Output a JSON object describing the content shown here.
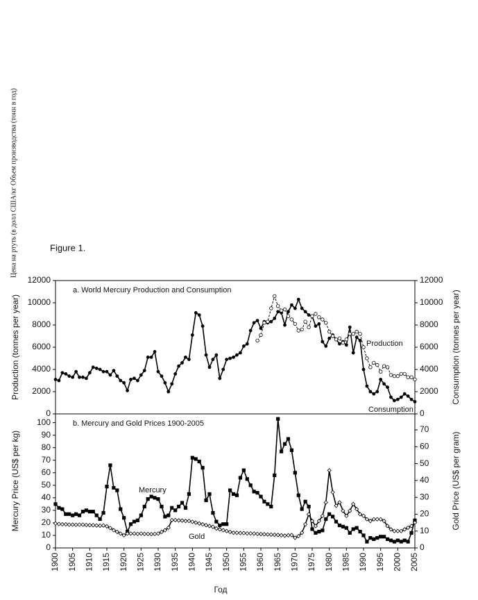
{
  "side_note": "Цена на ртуть (в долл США/кг Объем производства (тонн в год)",
  "figure_label": "Figure 1.",
  "chart_data": [
    {
      "type": "line",
      "title": "a. World Mercury Production and Consumption",
      "y_label": "Production (tonnes per year)",
      "y2_label": "Consumption (tonnes per year)",
      "xlim": [
        1900,
        2005
      ],
      "x": [
        1900,
        1901,
        1902,
        1903,
        1904,
        1905,
        1906,
        1907,
        1908,
        1909,
        1910,
        1911,
        1912,
        1913,
        1914,
        1915,
        1916,
        1917,
        1918,
        1919,
        1920,
        1921,
        1922,
        1923,
        1924,
        1925,
        1926,
        1927,
        1928,
        1929,
        1930,
        1931,
        1932,
        1933,
        1934,
        1935,
        1936,
        1937,
        1938,
        1939,
        1940,
        1941,
        1942,
        1943,
        1944,
        1945,
        1946,
        1947,
        1948,
        1949,
        1950,
        1951,
        1952,
        1953,
        1954,
        1955,
        1956,
        1957,
        1958,
        1959,
        1960,
        1961,
        1962,
        1963,
        1964,
        1965,
        1966,
        1967,
        1968,
        1969,
        1970,
        1971,
        1972,
        1973,
        1974,
        1975,
        1976,
        1977,
        1978,
        1979,
        1980,
        1981,
        1982,
        1983,
        1984,
        1985,
        1986,
        1987,
        1988,
        1989,
        1990,
        1991,
        1992,
        1993,
        1994,
        1995,
        1996,
        1997,
        1998,
        1999,
        2000,
        2001,
        2002,
        2003,
        2004,
        2005
      ],
      "ylim": [
        0,
        12000
      ],
      "yticks": [
        0,
        2000,
        4000,
        6000,
        8000,
        10000,
        12000
      ],
      "y2lim": [
        0,
        12000
      ],
      "y2ticks": [
        0,
        2000,
        4000,
        6000,
        8000,
        10000,
        12000
      ],
      "series": [
        {
          "name": "Production",
          "color": "#000000",
          "marker": "circle",
          "dashed": false,
          "values": [
            3100,
            3000,
            3700,
            3600,
            3400,
            3300,
            3800,
            3300,
            3300,
            3200,
            3700,
            4200,
            4100,
            4000,
            3800,
            3800,
            3500,
            3900,
            3400,
            3000,
            2800,
            2100,
            3100,
            3200,
            3000,
            3500,
            3900,
            5100,
            5100,
            5600,
            3800,
            3400,
            2800,
            2000,
            2700,
            3600,
            4300,
            4600,
            5100,
            4900,
            7100,
            9100,
            8900,
            7900,
            5300,
            4200,
            4900,
            5300,
            3200,
            4000,
            4900,
            5000,
            5100,
            5300,
            5500,
            6100,
            6300,
            7500,
            8200,
            8400,
            7700,
            8300,
            8200,
            8300,
            8600,
            9200,
            9100,
            8000,
            9200,
            9800,
            9500,
            10300,
            9500,
            9200,
            8900,
            8800,
            7900,
            8100,
            6500,
            6100,
            6800,
            7100,
            6700,
            6300,
            6500,
            6200,
            7800,
            5500,
            6900,
            6600,
            4000,
            2500,
            2000,
            1800,
            2000,
            3100,
            2700,
            2400,
            1500,
            1200,
            1300,
            1500,
            1800,
            1600,
            1300,
            1100
          ]
        },
        {
          "name": "Consumption",
          "color": "#000000",
          "marker": "open-circle",
          "dashed": true,
          "axis": "y2",
          "values": [
            null,
            null,
            null,
            null,
            null,
            null,
            null,
            null,
            null,
            null,
            null,
            null,
            null,
            null,
            null,
            null,
            null,
            null,
            null,
            null,
            null,
            null,
            null,
            null,
            null,
            null,
            null,
            null,
            null,
            null,
            null,
            null,
            null,
            null,
            null,
            null,
            null,
            null,
            null,
            null,
            null,
            null,
            null,
            null,
            null,
            null,
            null,
            null,
            null,
            null,
            null,
            null,
            null,
            null,
            null,
            null,
            null,
            null,
            null,
            6600,
            7100,
            8200,
            8300,
            9500,
            10600,
            9700,
            9300,
            9400,
            8800,
            8500,
            8100,
            7500,
            7600,
            8300,
            7800,
            8800,
            9000,
            8700,
            8500,
            8200,
            7400,
            7000,
            6700,
            6800,
            6400,
            6700,
            7200,
            7200,
            7400,
            7200,
            6000,
            5000,
            4200,
            4600,
            4400,
            3800,
            4300,
            4200,
            3500,
            3400,
            3400,
            3600,
            3600,
            3300,
            3300,
            3100
          ]
        }
      ]
    },
    {
      "type": "line",
      "title": "b. Mercury and Gold Prices 1900-2005",
      "y_label": "Mercury Price  (US$ per kg)",
      "y2_label": "Gold Price (US$ per gram)",
      "x_label": "Год",
      "xlim": [
        1900,
        2005
      ],
      "xticks": [
        1900,
        1905,
        1910,
        1915,
        1920,
        1925,
        1930,
        1935,
        1940,
        1945,
        1950,
        1955,
        1960,
        1965,
        1970,
        1975,
        1980,
        1985,
        1990,
        1995,
        2000,
        2005
      ],
      "x": [
        1900,
        1901,
        1902,
        1903,
        1904,
        1905,
        1906,
        1907,
        1908,
        1909,
        1910,
        1911,
        1912,
        1913,
        1914,
        1915,
        1916,
        1917,
        1918,
        1919,
        1920,
        1921,
        1922,
        1923,
        1924,
        1925,
        1926,
        1927,
        1928,
        1929,
        1930,
        1931,
        1932,
        1933,
        1934,
        1935,
        1936,
        1937,
        1938,
        1939,
        1940,
        1941,
        1942,
        1943,
        1944,
        1945,
        1946,
        1947,
        1948,
        1949,
        1950,
        1951,
        1952,
        1953,
        1954,
        1955,
        1956,
        1957,
        1958,
        1959,
        1960,
        1961,
        1962,
        1963,
        1964,
        1965,
        1966,
        1967,
        1968,
        1969,
        1970,
        1971,
        1972,
        1973,
        1974,
        1975,
        1976,
        1977,
        1978,
        1979,
        1980,
        1981,
        1982,
        1983,
        1984,
        1985,
        1986,
        1987,
        1988,
        1989,
        1990,
        1991,
        1992,
        1993,
        1994,
        1995,
        1996,
        1997,
        1998,
        1999,
        2000,
        2001,
        2002,
        2003,
        2004,
        2005
      ],
      "ylim": [
        0,
        107
      ],
      "yticks": [
        0,
        10,
        20,
        30,
        40,
        50,
        60,
        70,
        80,
        90,
        100
      ],
      "y2lim": [
        0,
        79.5
      ],
      "y2ticks": [
        0,
        10,
        20,
        30,
        40,
        50,
        60,
        70
      ],
      "series": [
        {
          "name": "Mercury",
          "color": "#000000",
          "marker": "square",
          "dashed": false,
          "values": [
            35,
            32,
            31,
            27,
            27,
            26,
            27,
            26,
            29,
            30,
            29,
            29,
            26,
            23,
            28,
            49,
            66,
            48,
            46,
            31,
            24,
            13,
            19,
            21,
            22,
            26,
            33,
            39,
            41,
            40,
            39,
            33,
            25,
            26,
            32,
            30,
            33,
            36,
            32,
            43,
            72,
            71,
            69,
            64,
            38,
            43,
            28,
            21,
            18,
            19,
            19,
            46,
            43,
            42,
            56,
            62,
            55,
            50,
            45,
            44,
            41,
            37,
            35,
            33,
            58,
            103,
            77,
            83,
            87,
            78,
            60,
            42,
            31,
            37,
            33,
            15,
            12,
            13,
            14,
            23,
            27,
            25,
            21,
            18,
            17,
            16,
            12,
            15,
            16,
            13,
            10,
            5,
            8,
            7,
            8,
            9,
            9,
            7,
            6,
            5,
            6,
            5,
            6,
            5,
            12,
            22
          ]
        },
        {
          "name": "Gold",
          "color": "#000000",
          "marker": "open-diamond",
          "dashed": false,
          "axis": "y2",
          "values": [
            14.5,
            14.2,
            14,
            14,
            13.8,
            13.8,
            13.7,
            13.8,
            13.8,
            13.6,
            13.5,
            13.5,
            13.3,
            13.2,
            13.3,
            12.8,
            11.8,
            10.5,
            9.5,
            8.5,
            7.5,
            8.5,
            8.5,
            8.5,
            8.3,
            8.5,
            8.3,
            8.3,
            8.2,
            8.3,
            8.5,
            9.5,
            10.5,
            12,
            16.5,
            16.5,
            16.3,
            16.2,
            16,
            16,
            15.5,
            15,
            14.5,
            14,
            13.5,
            13,
            12.5,
            11.5,
            11,
            10.5,
            10,
            9.5,
            9,
            9,
            8.8,
            8.8,
            8.6,
            8.6,
            8.5,
            8.3,
            8.2,
            8.1,
            8,
            7.9,
            7.8,
            7.7,
            7.5,
            7.3,
            7.5,
            7.6,
            6,
            7,
            9,
            14,
            20,
            16,
            13,
            16,
            19,
            27,
            46,
            33,
            25,
            27,
            22,
            19,
            22,
            26,
            23,
            20,
            19,
            17,
            16,
            17,
            17,
            17,
            16,
            13,
            11,
            10,
            10,
            10,
            11,
            12,
            13,
            15
          ]
        }
      ]
    }
  ]
}
